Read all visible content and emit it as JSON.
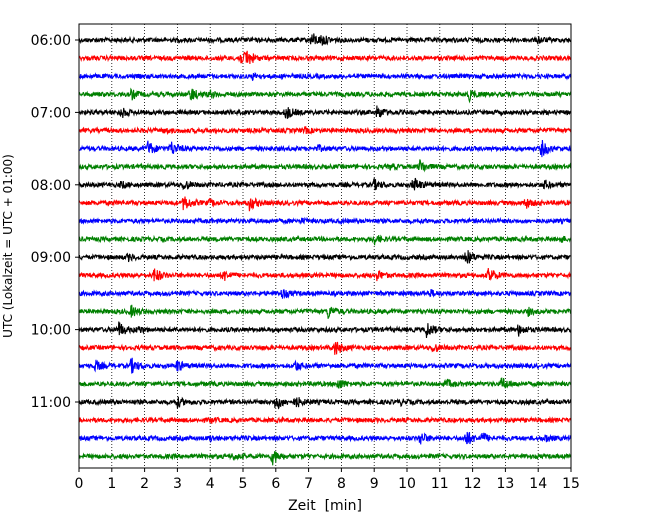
{
  "chart_data": {
    "type": "line",
    "title": "",
    "xlabel": "Zeit  [min]",
    "ylabel": "UTC (Lokalzeit = UTC + 01:00)",
    "xlim": [
      0,
      15
    ],
    "x_ticks": [
      "0",
      "1",
      "2",
      "3",
      "4",
      "5",
      "6",
      "7",
      "8",
      "9",
      "10",
      "11",
      "12",
      "13",
      "14",
      "15"
    ],
    "y_ticks": [
      "06:00",
      "07:00",
      "08:00",
      "09:00",
      "10:00",
      "11:00"
    ],
    "grid": "vertical dotted",
    "trace_interval_min": 15,
    "colors": [
      "#000000",
      "#ff0000",
      "#0000ff",
      "#008000"
    ],
    "series": [
      {
        "start": "06:00",
        "color": "#000000",
        "events": [
          {
            "t": 7.1,
            "a": 0.9
          },
          {
            "t": 7.4,
            "a": 0.6
          },
          {
            "t": 14.0,
            "a": 0.4
          }
        ]
      },
      {
        "start": "06:15",
        "color": "#ff0000",
        "events": [
          {
            "t": 4.9,
            "a": 0.8
          },
          {
            "t": 5.1,
            "a": 1.0
          }
        ]
      },
      {
        "start": "06:30",
        "color": "#0000ff",
        "events": [
          {
            "t": 5.3,
            "a": 0.3
          }
        ]
      },
      {
        "start": "06:45",
        "color": "#008000",
        "events": [
          {
            "t": 1.6,
            "a": 0.6
          },
          {
            "t": 3.4,
            "a": 0.9
          },
          {
            "t": 4.0,
            "a": 0.4
          },
          {
            "t": 11.9,
            "a": 0.7
          }
        ]
      },
      {
        "start": "07:00",
        "color": "#000000",
        "events": [
          {
            "t": 1.3,
            "a": 0.6
          },
          {
            "t": 6.3,
            "a": 0.9
          },
          {
            "t": 9.1,
            "a": 0.8
          }
        ]
      },
      {
        "start": "07:15",
        "color": "#ff0000",
        "events": [
          {
            "t": 2.6,
            "a": 0.3
          },
          {
            "t": 6.9,
            "a": 0.3
          }
        ]
      },
      {
        "start": "07:30",
        "color": "#0000ff",
        "events": [
          {
            "t": 2.1,
            "a": 0.9
          },
          {
            "t": 2.8,
            "a": 0.9
          },
          {
            "t": 14.1,
            "a": 1.0
          },
          {
            "t": 7.3,
            "a": 0.3
          }
        ]
      },
      {
        "start": "07:45",
        "color": "#008000",
        "events": [
          {
            "t": 10.4,
            "a": 0.8
          },
          {
            "t": 9.5,
            "a": 0.3
          }
        ]
      },
      {
        "start": "08:00",
        "color": "#000000",
        "events": [
          {
            "t": 3.2,
            "a": 0.7
          },
          {
            "t": 9.0,
            "a": 0.6
          },
          {
            "t": 10.2,
            "a": 1.0
          },
          {
            "t": 14.2,
            "a": 0.5
          },
          {
            "t": 1.3,
            "a": 0.4
          }
        ]
      },
      {
        "start": "08:15",
        "color": "#ff0000",
        "events": [
          {
            "t": 3.2,
            "a": 1.0
          },
          {
            "t": 5.2,
            "a": 0.9
          },
          {
            "t": 13.6,
            "a": 0.7
          },
          {
            "t": 4.0,
            "a": 0.4
          }
        ]
      },
      {
        "start": "08:30",
        "color": "#0000ff",
        "events": [
          {
            "t": 6.8,
            "a": 0.2
          }
        ]
      },
      {
        "start": "08:45",
        "color": "#008000",
        "events": [
          {
            "t": 9.0,
            "a": 0.6
          },
          {
            "t": 14.7,
            "a": 0.3
          }
        ]
      },
      {
        "start": "09:00",
        "color": "#000000",
        "events": [
          {
            "t": 1.5,
            "a": 0.4
          },
          {
            "t": 11.8,
            "a": 1.0
          }
        ]
      },
      {
        "start": "09:15",
        "color": "#ff0000",
        "events": [
          {
            "t": 2.3,
            "a": 0.9
          },
          {
            "t": 4.4,
            "a": 0.7
          },
          {
            "t": 9.1,
            "a": 0.6
          },
          {
            "t": 12.5,
            "a": 1.0
          }
        ]
      },
      {
        "start": "09:30",
        "color": "#0000ff",
        "events": [
          {
            "t": 6.2,
            "a": 0.6
          },
          {
            "t": 10.7,
            "a": 0.4
          }
        ]
      },
      {
        "start": "09:45",
        "color": "#008000",
        "events": [
          {
            "t": 1.6,
            "a": 0.7
          },
          {
            "t": 7.6,
            "a": 0.8
          },
          {
            "t": 13.7,
            "a": 0.4
          }
        ]
      },
      {
        "start": "10:00",
        "color": "#000000",
        "events": [
          {
            "t": 1.2,
            "a": 1.0
          },
          {
            "t": 10.6,
            "a": 1.0
          },
          {
            "t": 13.4,
            "a": 0.7
          },
          {
            "t": 1.8,
            "a": 0.4
          }
        ]
      },
      {
        "start": "10:15",
        "color": "#ff0000",
        "events": [
          {
            "t": 7.8,
            "a": 1.0
          },
          {
            "t": 10.8,
            "a": 0.6
          }
        ]
      },
      {
        "start": "10:30",
        "color": "#0000ff",
        "events": [
          {
            "t": 0.5,
            "a": 0.6
          },
          {
            "t": 1.6,
            "a": 0.9
          },
          {
            "t": 3.0,
            "a": 0.7
          },
          {
            "t": 6.6,
            "a": 0.6
          }
        ]
      },
      {
        "start": "10:45",
        "color": "#008000",
        "events": [
          {
            "t": 7.9,
            "a": 0.7
          },
          {
            "t": 11.2,
            "a": 0.5
          },
          {
            "t": 12.9,
            "a": 0.8
          }
        ]
      },
      {
        "start": "11:00",
        "color": "#000000",
        "events": [
          {
            "t": 3.0,
            "a": 0.6
          },
          {
            "t": 6.0,
            "a": 1.0
          },
          {
            "t": 6.6,
            "a": 0.7
          },
          {
            "t": 9.8,
            "a": 0.3
          }
        ]
      },
      {
        "start": "11:15",
        "color": "#ff0000",
        "events": [
          {
            "t": 4.0,
            "a": 0.3
          }
        ]
      },
      {
        "start": "11:30",
        "color": "#0000ff",
        "events": [
          {
            "t": 10.4,
            "a": 0.8
          },
          {
            "t": 11.8,
            "a": 1.0
          },
          {
            "t": 12.3,
            "a": 0.6
          },
          {
            "t": 14.2,
            "a": 0.5
          },
          {
            "t": 4.0,
            "a": 0.3
          }
        ]
      },
      {
        "start": "11:45",
        "color": "#008000",
        "events": [
          {
            "t": 5.9,
            "a": 1.0
          },
          {
            "t": 4.7,
            "a": 0.4
          }
        ]
      }
    ]
  }
}
